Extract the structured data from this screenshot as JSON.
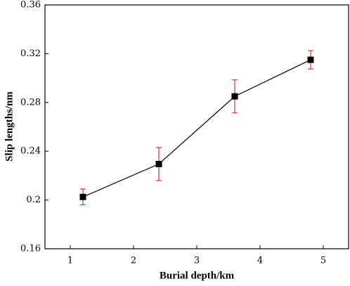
{
  "chart_data": {
    "type": "line",
    "xlabel": "Burial depth/km",
    "ylabel": "Slip lengths/nm",
    "x": [
      1.2,
      2.4,
      3.6,
      4.8
    ],
    "series": [
      {
        "values": [
          0.2025,
          0.2295,
          0.285,
          0.315
        ],
        "errors": [
          0.0065,
          0.0135,
          0.0135,
          0.0075
        ],
        "color": "#000000",
        "error_color": "#e8322e"
      }
    ],
    "xlim": [
      0.6,
      5.4
    ],
    "xticks": [
      1,
      2,
      3,
      4,
      5
    ],
    "ylim": [
      0.16,
      0.36
    ],
    "yticks": [
      0.16,
      0.2,
      0.24,
      0.28,
      0.32,
      0.36
    ]
  }
}
